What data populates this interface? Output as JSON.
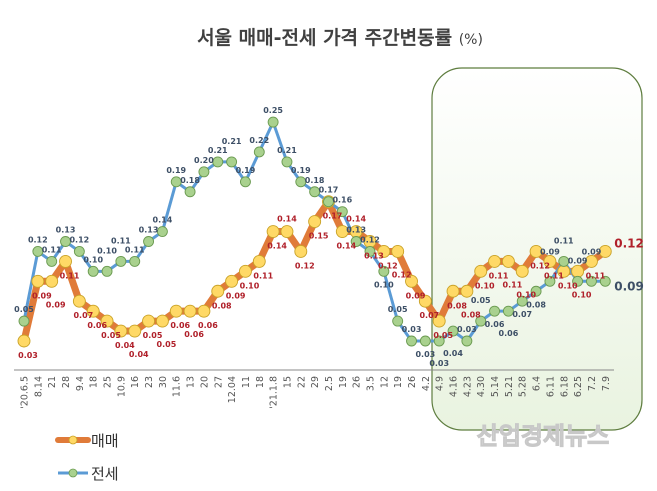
{
  "chart_data": {
    "type": "line",
    "title": "서울 매매-전세 가격 주간변동률",
    "title_unit": "(%)",
    "categories": [
      "'20.6.5",
      "8.14",
      "21",
      "28",
      "9.4",
      "18",
      "25",
      "10.9",
      "16",
      "23",
      "30",
      "11.6",
      "13",
      "20",
      "27",
      "12.04",
      "11",
      "18",
      "'21.1.8",
      "15",
      "22",
      "29",
      "2.5",
      "19",
      "26",
      "3.5",
      "12",
      "19",
      "26",
      "4.2",
      "4.9",
      "4.16",
      "4.23",
      "4.30",
      "5.14",
      "5.21",
      "5.28",
      "6.4",
      "6.11",
      "6.18",
      "6.25",
      "7.2",
      "7.9"
    ],
    "series": [
      {
        "name": "매매",
        "color": "#e07b39",
        "marker_color": "#ffd966",
        "values": [
          0.03,
          0.09,
          0.09,
          0.11,
          0.07,
          0.06,
          0.05,
          0.04,
          0.04,
          0.05,
          0.05,
          0.06,
          0.06,
          0.06,
          0.08,
          0.09,
          0.1,
          0.11,
          0.14,
          0.14,
          0.12,
          0.15,
          0.17,
          0.14,
          0.14,
          0.13,
          0.12,
          0.12,
          0.09,
          0.07,
          0.05,
          0.08,
          0.08,
          0.1,
          0.11,
          0.11,
          0.1,
          0.12,
          0.11,
          0.1,
          0.1,
          0.11,
          0.12
        ]
      },
      {
        "name": "전세",
        "color": "#5b9bd5",
        "marker_color": "#a9d18e",
        "values": [
          0.05,
          0.12,
          0.11,
          0.13,
          0.12,
          0.1,
          0.1,
          0.11,
          0.11,
          0.13,
          0.14,
          0.19,
          0.18,
          0.2,
          0.21,
          0.21,
          0.19,
          0.22,
          0.25,
          0.21,
          0.19,
          0.18,
          0.17,
          0.16,
          0.13,
          0.12,
          0.1,
          0.05,
          0.03,
          0.03,
          0.03,
          0.04,
          0.03,
          0.05,
          0.06,
          0.06,
          0.07,
          0.08,
          0.09,
          0.11,
          0.09,
          0.09,
          0.09
        ]
      }
    ],
    "ylim": [
      0.0,
      0.27
    ],
    "grid": false,
    "data_labels": true,
    "legend": "bottom-left",
    "highlight_range": [
      "4.9",
      "7.9"
    ],
    "highlight_color": "#e9f3e0"
  },
  "watermark": "산업경제뉴스"
}
